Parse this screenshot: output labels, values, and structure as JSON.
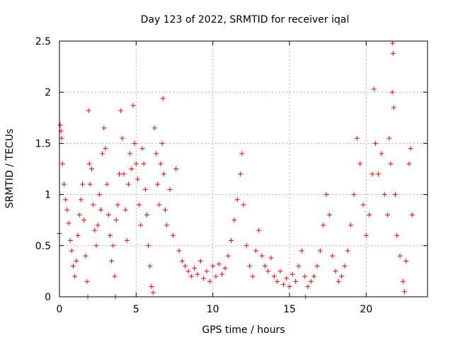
{
  "chart_data": {
    "type": "scatter",
    "title": "Day 123 of 2022, SRMTID for receiver iqal",
    "xlabel": "GPS time / hours",
    "ylabel": "SRMTID / TECUs",
    "xlim": [
      0,
      24
    ],
    "ylim": [
      0,
      2.5
    ],
    "xticks": [
      0,
      5,
      10,
      15,
      20
    ],
    "xtick_labels": [
      "0",
      "5",
      "10",
      "15",
      "20"
    ],
    "yticks": [
      0,
      0.5,
      1,
      1.5,
      2,
      2.5
    ],
    "ytick_labels": [
      "0",
      "0.5",
      "1",
      "1.5",
      "2",
      "2.5"
    ],
    "grid": true,
    "marker": "+",
    "marker_color": "#ff0000",
    "series": [
      {
        "name": "SRMTID",
        "points": [
          [
            0.0,
            0.62
          ],
          [
            0.05,
            1.68
          ],
          [
            0.1,
            1.62
          ],
          [
            0.15,
            1.55
          ],
          [
            0.2,
            1.3
          ],
          [
            0.3,
            1.1
          ],
          [
            0.4,
            0.95
          ],
          [
            0.5,
            0.85
          ],
          [
            0.6,
            0.72
          ],
          [
            0.7,
            0.55
          ],
          [
            0.8,
            0.45
          ],
          [
            0.9,
            0.3
          ],
          [
            1.0,
            0.2
          ],
          [
            1.1,
            0.35
          ],
          [
            1.2,
            0.6
          ],
          [
            1.3,
            0.8
          ],
          [
            1.4,
            0.95
          ],
          [
            1.5,
            1.1
          ],
          [
            1.6,
            0.75
          ],
          [
            1.7,
            0.4
          ],
          [
            1.8,
            0.15
          ],
          [
            1.85,
            0.0
          ],
          [
            1.9,
            1.82
          ],
          [
            1.95,
            1.3
          ],
          [
            2.0,
            1.1
          ],
          [
            2.1,
            1.25
          ],
          [
            2.2,
            0.9
          ],
          [
            2.3,
            0.65
          ],
          [
            2.4,
            0.5
          ],
          [
            2.5,
            0.7
          ],
          [
            2.6,
            1.0
          ],
          [
            2.7,
            0.85
          ],
          [
            2.8,
            1.4
          ],
          [
            2.9,
            1.65
          ],
          [
            3.0,
            1.45
          ],
          [
            3.1,
            1.1
          ],
          [
            3.2,
            0.8
          ],
          [
            3.3,
            0.6
          ],
          [
            3.4,
            0.35
          ],
          [
            3.5,
            0.5
          ],
          [
            3.6,
            0.2
          ],
          [
            3.65,
            0.0
          ],
          [
            3.7,
            0.75
          ],
          [
            3.8,
            0.9
          ],
          [
            3.9,
            1.2
          ],
          [
            4.0,
            1.82
          ],
          [
            4.1,
            1.55
          ],
          [
            4.2,
            1.2
          ],
          [
            4.3,
            0.85
          ],
          [
            4.4,
            0.55
          ],
          [
            4.5,
            1.1
          ],
          [
            4.6,
            1.4
          ],
          [
            4.7,
            1.25
          ],
          [
            4.8,
            1.87
          ],
          [
            4.9,
            1.5
          ],
          [
            5.0,
            1.3
          ],
          [
            5.1,
            1.15
          ],
          [
            5.2,
            0.9
          ],
          [
            5.3,
            0.7
          ],
          [
            5.4,
            1.45
          ],
          [
            5.5,
            1.3
          ],
          [
            5.6,
            1.05
          ],
          [
            5.7,
            0.8
          ],
          [
            5.8,
            0.5
          ],
          [
            5.9,
            0.3
          ],
          [
            6.0,
            0.1
          ],
          [
            6.1,
            0.04
          ],
          [
            6.2,
            1.65
          ],
          [
            6.3,
            1.4
          ],
          [
            6.4,
            1.1
          ],
          [
            6.5,
            0.9
          ],
          [
            6.6,
            1.3
          ],
          [
            6.7,
            1.5
          ],
          [
            6.75,
            1.94
          ],
          [
            6.8,
            1.2
          ],
          [
            6.9,
            0.85
          ],
          [
            7.0,
            0.7
          ],
          [
            7.2,
            1.05
          ],
          [
            7.4,
            0.6
          ],
          [
            7.6,
            1.25
          ],
          [
            7.8,
            0.45
          ],
          [
            8.0,
            0.35
          ],
          [
            8.2,
            0.3
          ],
          [
            8.4,
            0.25
          ],
          [
            8.6,
            0.2
          ],
          [
            8.8,
            0.28
          ],
          [
            9.0,
            0.22
          ],
          [
            9.2,
            0.35
          ],
          [
            9.4,
            0.18
          ],
          [
            9.6,
            0.25
          ],
          [
            9.8,
            0.15
          ],
          [
            10.0,
            0.3
          ],
          [
            10.2,
            0.2
          ],
          [
            10.4,
            0.32
          ],
          [
            10.6,
            0.22
          ],
          [
            10.8,
            0.28
          ],
          [
            11.0,
            0.4
          ],
          [
            11.2,
            0.55
          ],
          [
            11.4,
            0.75
          ],
          [
            11.6,
            0.95
          ],
          [
            11.8,
            1.2
          ],
          [
            11.9,
            1.4
          ],
          [
            12.0,
            0.9
          ],
          [
            12.2,
            0.5
          ],
          [
            12.4,
            0.3
          ],
          [
            12.6,
            0.2
          ],
          [
            12.8,
            0.45
          ],
          [
            13.0,
            0.65
          ],
          [
            13.2,
            0.4
          ],
          [
            13.4,
            0.3
          ],
          [
            13.6,
            0.25
          ],
          [
            13.8,
            0.38
          ],
          [
            14.0,
            0.2
          ],
          [
            14.2,
            0.15
          ],
          [
            14.4,
            0.25
          ],
          [
            14.6,
            0.12
          ],
          [
            14.8,
            0.18
          ],
          [
            15.0,
            0.1
          ],
          [
            15.2,
            0.22
          ],
          [
            15.4,
            0.15
          ],
          [
            15.6,
            0.3
          ],
          [
            15.8,
            0.45
          ],
          [
            16.0,
            0.2
          ],
          [
            16.05,
            0.0
          ],
          [
            16.2,
            0.1
          ],
          [
            16.4,
            0.15
          ],
          [
            16.6,
            0.2
          ],
          [
            16.8,
            0.3
          ],
          [
            17.0,
            0.45
          ],
          [
            17.2,
            0.7
          ],
          [
            17.4,
            1.0
          ],
          [
            17.6,
            0.8
          ],
          [
            17.8,
            0.4
          ],
          [
            18.0,
            0.25
          ],
          [
            18.2,
            0.15
          ],
          [
            18.4,
            0.2
          ],
          [
            18.6,
            0.3
          ],
          [
            18.8,
            0.45
          ],
          [
            19.0,
            0.7
          ],
          [
            19.2,
            1.0
          ],
          [
            19.4,
            1.55
          ],
          [
            19.6,
            1.3
          ],
          [
            19.8,
            0.9
          ],
          [
            20.0,
            0.6
          ],
          [
            20.2,
            0.8
          ],
          [
            20.4,
            1.2
          ],
          [
            20.5,
            2.03
          ],
          [
            20.6,
            1.5
          ],
          [
            20.8,
            1.2
          ],
          [
            21.0,
            1.4
          ],
          [
            21.2,
            1.0
          ],
          [
            21.4,
            0.8
          ],
          [
            21.5,
            1.55
          ],
          [
            21.6,
            1.3
          ],
          [
            21.7,
            2.0
          ],
          [
            21.72,
            2.48
          ],
          [
            21.75,
            2.38
          ],
          [
            21.8,
            1.85
          ],
          [
            21.9,
            1.0
          ],
          [
            22.0,
            0.6
          ],
          [
            22.2,
            0.4
          ],
          [
            22.4,
            0.15
          ],
          [
            22.5,
            0.05
          ],
          [
            22.6,
            0.35
          ],
          [
            22.8,
            1.3
          ],
          [
            22.9,
            1.45
          ],
          [
            23.0,
            0.8
          ]
        ]
      }
    ]
  }
}
